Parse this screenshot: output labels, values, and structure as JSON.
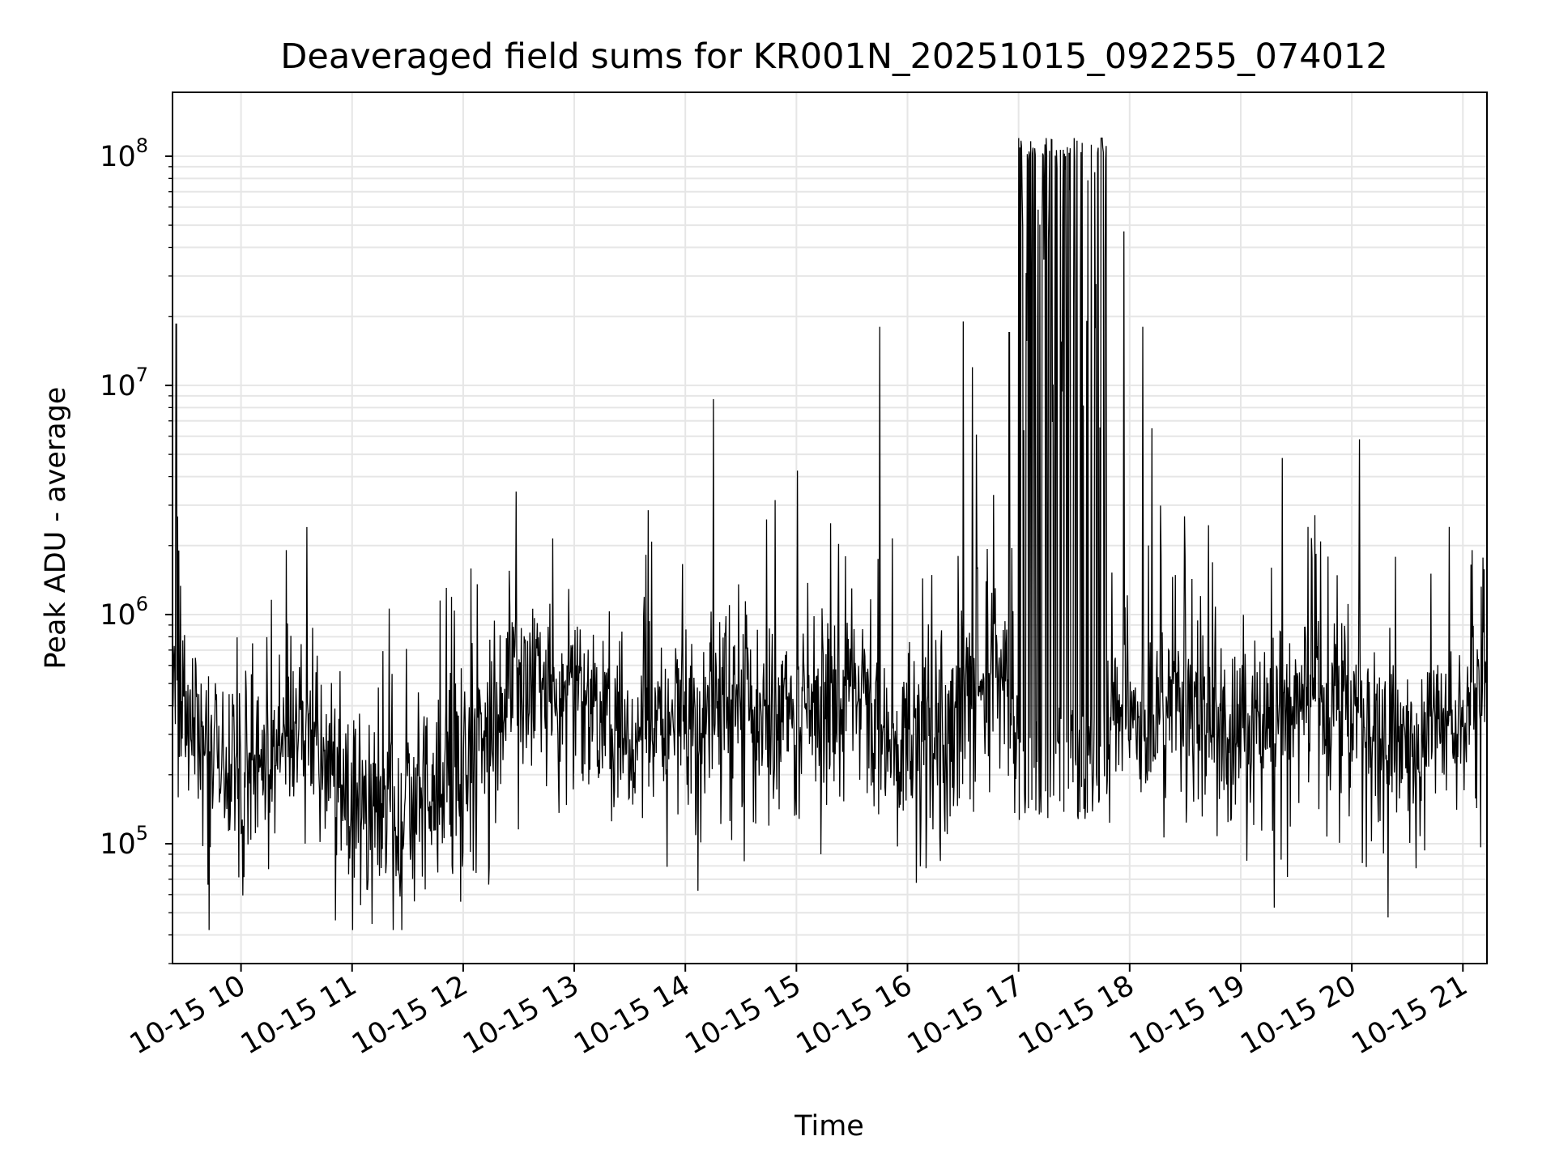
{
  "chart_data": {
    "type": "line",
    "title": "Deaveraged field sums for KR001N_20251015_092255_074012",
    "xlabel": "Time",
    "ylabel": "Peak ADU - average",
    "x_scale": "time",
    "y_scale": "log",
    "xlim": [
      "2025-10-15 09:23",
      "2025-10-15 21:13"
    ],
    "ylim": [
      30000,
      190000000
    ],
    "grid": true,
    "line_color": "#000000",
    "x_ticks": [
      "10-15 10",
      "10-15 11",
      "10-15 12",
      "10-15 13",
      "10-15 14",
      "10-15 15",
      "10-15 16",
      "10-15 17",
      "10-15 18",
      "10-15 19",
      "10-15 20",
      "10-15 21"
    ],
    "y_ticks": [
      {
        "base": "10",
        "exp": "5",
        "value": 100000
      },
      {
        "base": "10",
        "exp": "6",
        "value": 1000000
      },
      {
        "base": "10",
        "exp": "7",
        "value": 10000000
      },
      {
        "base": "10",
        "exp": "8",
        "value": 100000000
      }
    ],
    "series_envelope": {
      "description_points_time": [
        "09:23",
        "09:40",
        "10:00",
        "10:30",
        "11:00",
        "11:30",
        "11:55",
        "12:30",
        "13:00",
        "13:30",
        "14:00",
        "14:30",
        "15:00",
        "15:30",
        "15:50",
        "16:20",
        "16:45",
        "17:00",
        "17:30",
        "17:55",
        "18:30",
        "19:00",
        "19:30",
        "20:00",
        "20:30",
        "21:00",
        "21:13"
      ],
      "typical_values": [
        600000,
        250000,
        200000,
        350000,
        160000,
        150000,
        200000,
        500000,
        450000,
        280000,
        350000,
        450000,
        350000,
        500000,
        250000,
        300000,
        600000,
        250000,
        400000,
        350000,
        400000,
        300000,
        450000,
        350000,
        250000,
        350000,
        700000
      ]
    },
    "notable_spikes": [
      {
        "time": "09:25",
        "value": 18500000
      },
      {
        "time": "15:45",
        "value": 18000000
      },
      {
        "time": "16:30",
        "value": 19000000
      },
      {
        "time": "16:35",
        "value": 12000000
      },
      {
        "time": "16:55",
        "value": 17000000
      },
      {
        "time": "17:00",
        "value": 120000000
      },
      {
        "time": "17:15",
        "value": 120000000
      },
      {
        "time": "17:30",
        "value": 120000000
      },
      {
        "time": "17:45",
        "value": 120000000
      },
      {
        "time": "17:57",
        "value": 47000000
      },
      {
        "time": "18:07",
        "value": 18000000
      },
      {
        "time": "18:12",
        "value": 6500000
      }
    ]
  }
}
